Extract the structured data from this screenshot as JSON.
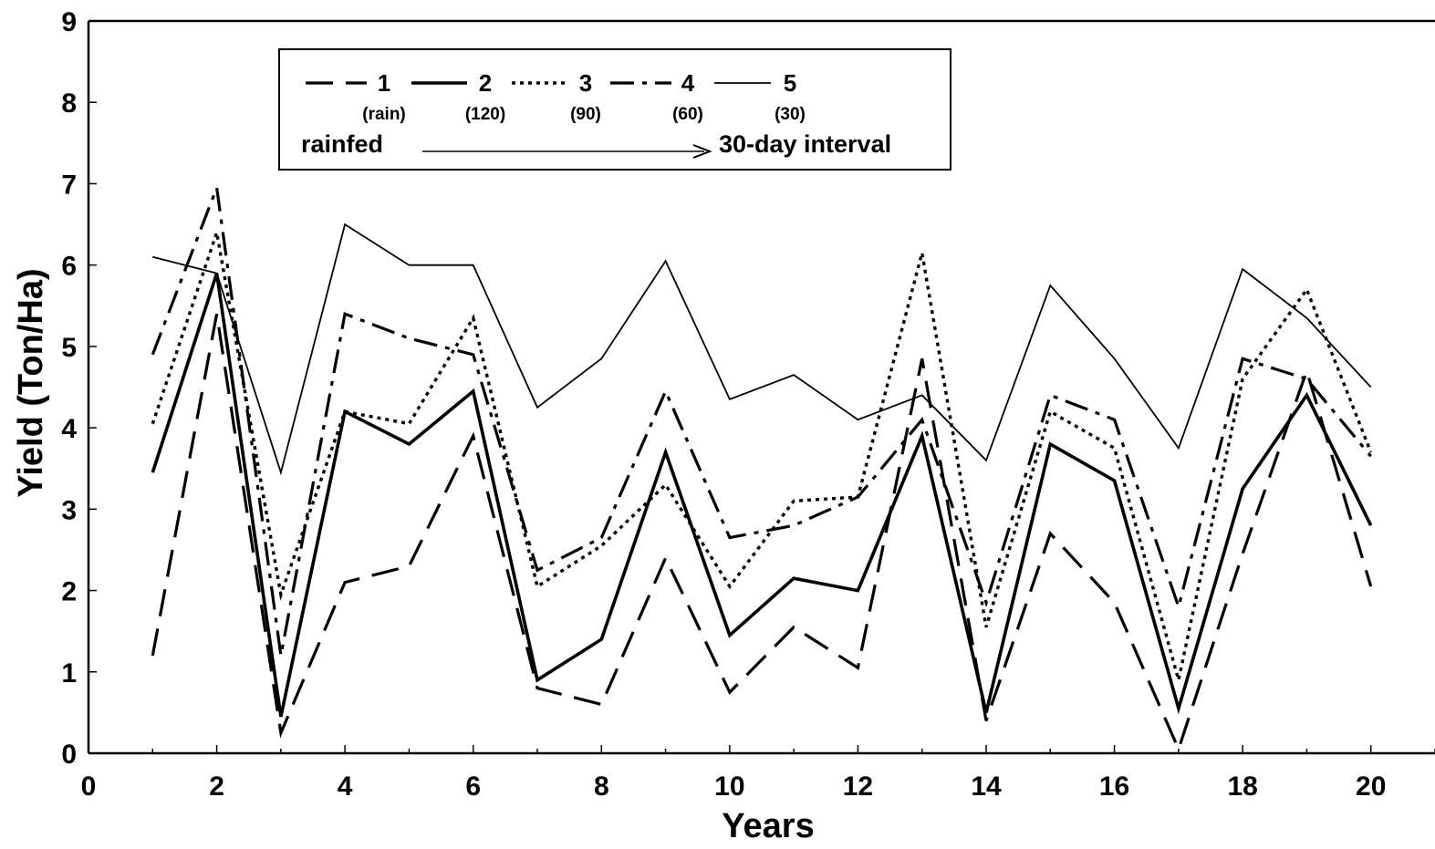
{
  "chart_data": {
    "type": "line",
    "xlabel": "Years",
    "ylabel": "Yield (Ton/Ha)",
    "xlim": [
      0,
      21
    ],
    "ylim": [
      0,
      9
    ],
    "xticks": [
      0,
      2,
      4,
      6,
      8,
      10,
      12,
      14,
      16,
      18,
      20
    ],
    "yticks": [
      0,
      1,
      2,
      3,
      4,
      5,
      6,
      7,
      8,
      9
    ],
    "grid": false,
    "legend_position": "top-left",
    "legend": {
      "entries": [
        {
          "label": "1",
          "sublabel": "(rain)"
        },
        {
          "label": "2",
          "sublabel": "(120)"
        },
        {
          "label": "3",
          "sublabel": "(90)"
        },
        {
          "label": "4",
          "sublabel": "(60)"
        },
        {
          "label": "5",
          "sublabel": "(30)"
        }
      ],
      "caption_left": "rainfed",
      "caption_right": "30-day interval"
    },
    "x": [
      1,
      2,
      3,
      4,
      5,
      6,
      7,
      8,
      9,
      10,
      11,
      12,
      13,
      14,
      15,
      16,
      17,
      18,
      19,
      20
    ],
    "series": [
      {
        "name": "1",
        "style": "dashed",
        "values": [
          1.2,
          5.4,
          0.25,
          2.1,
          2.3,
          3.9,
          0.8,
          0.6,
          2.4,
          0.75,
          1.55,
          1.05,
          4.85,
          0.4,
          2.7,
          1.85,
          0.05,
          2.45,
          4.7,
          2.05
        ]
      },
      {
        "name": "2",
        "style": "solid-thick",
        "values": [
          3.45,
          5.9,
          0.45,
          4.2,
          3.8,
          4.45,
          0.9,
          1.4,
          3.7,
          1.45,
          2.15,
          2.0,
          3.9,
          0.5,
          3.8,
          3.35,
          0.55,
          3.25,
          4.4,
          2.8
        ]
      },
      {
        "name": "3",
        "style": "dotted",
        "values": [
          4.05,
          6.4,
          1.95,
          4.2,
          4.05,
          5.35,
          2.05,
          2.55,
          3.3,
          2.05,
          3.1,
          3.15,
          6.15,
          1.55,
          4.2,
          3.75,
          0.9,
          4.6,
          5.7,
          3.7
        ]
      },
      {
        "name": "4",
        "style": "dash-dot",
        "values": [
          4.9,
          6.95,
          1.2,
          5.4,
          5.1,
          4.9,
          2.25,
          2.65,
          4.45,
          2.65,
          2.8,
          3.15,
          4.1,
          1.85,
          4.4,
          4.1,
          1.8,
          4.85,
          4.6,
          3.65
        ]
      },
      {
        "name": "5",
        "style": "solid-thin",
        "values": [
          6.1,
          5.9,
          3.45,
          6.5,
          6.0,
          6.0,
          4.25,
          4.85,
          6.05,
          4.35,
          4.65,
          4.1,
          4.4,
          3.6,
          5.75,
          4.85,
          3.75,
          5.95,
          5.35,
          4.5
        ]
      }
    ]
  }
}
